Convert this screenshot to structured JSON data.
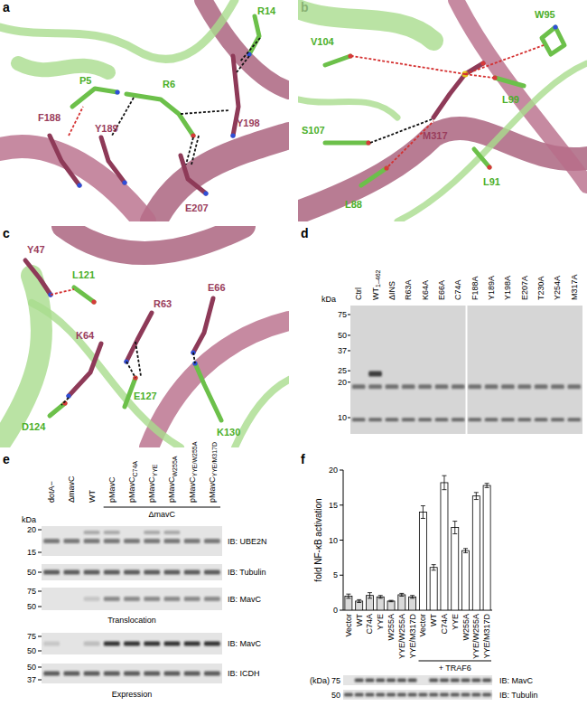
{
  "panel_labels": [
    "a",
    "b",
    "c",
    "d",
    "e",
    "f"
  ],
  "panels": {
    "a": {
      "labels": [
        {
          "text": "R14",
          "color": "#4caf2a"
        },
        {
          "text": "P5",
          "color": "#4caf2a"
        },
        {
          "text": "R6",
          "color": "#4caf2a"
        },
        {
          "text": "Y198",
          "color": "#9a3d5c"
        },
        {
          "text": "F188",
          "color": "#9a3d5c"
        },
        {
          "text": "Y189",
          "color": "#9a3d5c"
        },
        {
          "text": "E207",
          "color": "#9a3d5c"
        }
      ]
    },
    "b": {
      "labels": [
        {
          "text": "W95",
          "color": "#4caf2a"
        },
        {
          "text": "V104",
          "color": "#4caf2a"
        },
        {
          "text": "L99",
          "color": "#4caf2a"
        },
        {
          "text": "M317",
          "color": "#9a3d5c"
        },
        {
          "text": "S107",
          "color": "#4caf2a"
        },
        {
          "text": "L91",
          "color": "#4caf2a"
        },
        {
          "text": "L88",
          "color": "#4caf2a"
        }
      ]
    },
    "c": {
      "labels": [
        {
          "text": "Y47",
          "color": "#9a3d5c"
        },
        {
          "text": "L121",
          "color": "#4caf2a"
        },
        {
          "text": "R63",
          "color": "#9a3d5c"
        },
        {
          "text": "E66",
          "color": "#9a3d5c"
        },
        {
          "text": "K64",
          "color": "#9a3d5c"
        },
        {
          "text": "E127",
          "color": "#4caf2a"
        },
        {
          "text": "D124",
          "color": "#4caf2a"
        },
        {
          "text": "K130",
          "color": "#4caf2a"
        }
      ]
    },
    "d": {
      "unit": "kDa",
      "markers": [
        75,
        50,
        37,
        25,
        20,
        10
      ],
      "lanes": [
        {
          "text": "Ctrl"
        },
        {
          "text": "WT",
          "sub": "1–462"
        },
        {
          "text": "ΔINS"
        },
        {
          "text": "R63A"
        },
        {
          "text": "K64A"
        },
        {
          "text": "E66A"
        },
        {
          "text": "C74A"
        },
        {
          "text": "F188A"
        },
        {
          "text": "Y189A"
        },
        {
          "text": "Y198A"
        },
        {
          "text": "E207A"
        },
        {
          "text": "T230A"
        },
        {
          "text": "Y254A"
        },
        {
          "text": "M317A"
        }
      ]
    },
    "e": {
      "unit": "kDa",
      "lanes": [
        {
          "text": "dotA−"
        },
        {
          "text": "ΔmavC"
        },
        {
          "text": "WT"
        },
        {
          "text": "pMavC"
        },
        {
          "text": "pMavC",
          "sub": "C74A"
        },
        {
          "text": "pMavC",
          "sub": "YYE"
        },
        {
          "text": "pMavC",
          "sub": "W255A"
        },
        {
          "text": "pMavC",
          "sub": "YYE/W255A"
        },
        {
          "text": "pMavC",
          "sub": "YYE/M317D"
        }
      ],
      "group_label": "ΔmavC",
      "blots": [
        {
          "markers": [
            20,
            15
          ],
          "label": "IB: UBE2N"
        },
        {
          "markers": [
            50
          ],
          "label": "IB: Tubulin"
        },
        {
          "markers": [
            75,
            50
          ],
          "label": "IB: MavC"
        },
        {
          "markers": [
            75,
            50
          ],
          "label": "IB: MavC"
        },
        {
          "markers": [
            50,
            37
          ],
          "label": "IB: ICDH"
        }
      ],
      "sections": [
        "Translocation",
        "Expression"
      ]
    },
    "f_blot": {
      "unit": "(kDa)",
      "blots": [
        {
          "markers": [
            75
          ],
          "label": "IB: MavC"
        },
        {
          "markers": [
            50
          ],
          "label": "IB: Tubulin"
        }
      ]
    }
  },
  "chart_data": {
    "type": "bar",
    "y_label": "fold NF-κB activation",
    "categories": [
      "Vector",
      "WT",
      "C74A",
      "YYE",
      "W255A",
      "YYE/W255A",
      "YYE/M317D",
      "Vector",
      "WT",
      "C74A",
      "YYE",
      "W255A",
      "YYE/W255A",
      "YYE/M317D"
    ],
    "values": [
      2.0,
      1.3,
      2.1,
      1.9,
      1.3,
      2.2,
      1.9,
      14.0,
      6.1,
      18.2,
      11.8,
      8.5,
      16.3,
      17.8
    ],
    "errors": [
      0.3,
      0.2,
      0.4,
      0.2,
      0.1,
      0.2,
      0.2,
      0.9,
      0.4,
      1.0,
      0.9,
      0.3,
      0.5,
      0.3
    ],
    "colors": [
      "#d9d9d9",
      "#d9d9d9",
      "#d9d9d9",
      "#d9d9d9",
      "#d9d9d9",
      "#d9d9d9",
      "#d9d9d9",
      "#ffffff",
      "#ffffff",
      "#ffffff",
      "#ffffff",
      "#ffffff",
      "#ffffff",
      "#ffffff"
    ],
    "ylim": [
      0,
      20
    ],
    "yticks": [
      0,
      5,
      10,
      15,
      20
    ],
    "annotations": [
      "+ TRAF6"
    ]
  }
}
